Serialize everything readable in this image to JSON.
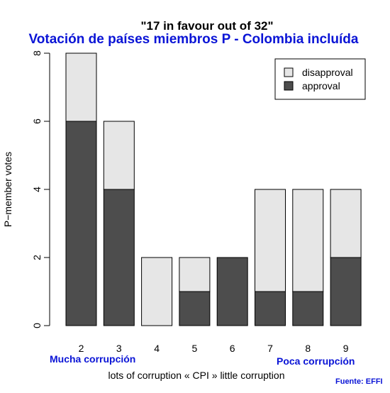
{
  "chart_data": {
    "type": "bar",
    "stacked": true,
    "title": "\"17 in favour out of 32\"",
    "subtitle": "Votación de países miembros  P - Colombia incluída",
    "xlabel": "lots of corruption « CPI » little corruption",
    "ylabel": "P−member votes",
    "categories": [
      "2",
      "3",
      "4",
      "5",
      "6",
      "7",
      "8",
      "9"
    ],
    "series": [
      {
        "name": "approval",
        "color": "#4d4d4d",
        "values": [
          6,
          4,
          0,
          1,
          2,
          1,
          1,
          2
        ]
      },
      {
        "name": "disapproval",
        "color": "#e6e6e6",
        "values": [
          2,
          2,
          2,
          1,
          0,
          3,
          3,
          2
        ]
      }
    ],
    "ylim": [
      0,
      8
    ],
    "yticks": [
      0,
      2,
      4,
      6,
      8
    ],
    "legend_position": "top-right",
    "grid": false
  },
  "annotations": {
    "left": "Mucha corrupción",
    "right": "Poca corrupción",
    "source": "Fuente: EFFI"
  }
}
